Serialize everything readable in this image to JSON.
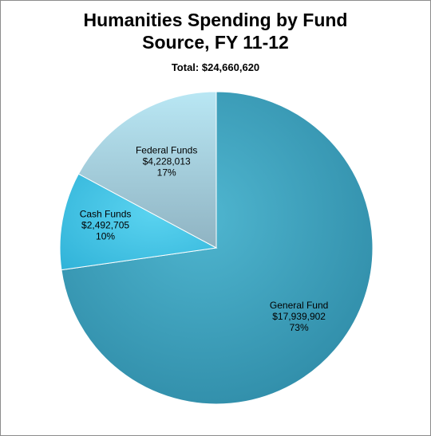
{
  "chart_data": {
    "type": "pie",
    "title_lines": [
      "Humanities Spending by Fund",
      "Source, FY 11-12"
    ],
    "subtitle": "Total: $24,660,620",
    "slices": [
      {
        "name": "General Fund",
        "amount": "$17,939,902",
        "value": 17939902,
        "percent": "73%",
        "color": "#3ea3bd"
      },
      {
        "name": "Cash Funds",
        "amount": "$2,492,705",
        "value": 2492705,
        "percent": "10%",
        "color": "#3ec4e6"
      },
      {
        "name": "Federal Funds",
        "amount": "$4,228,013",
        "value": 4228013,
        "percent": "17%",
        "color": "#a6d7e6"
      }
    ]
  }
}
